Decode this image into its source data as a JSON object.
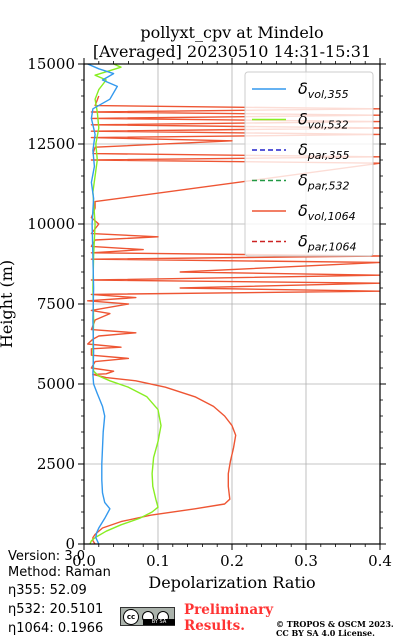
{
  "figure": {
    "title_line1": "pollyxt_cpv at Mindelo",
    "title_line2": "[Averaged] 20230510 14:31-15:31"
  },
  "meta": {
    "version": "Version: 3.0",
    "method": "Method: Raman",
    "eta355": "η355:  52.09",
    "eta532": "η532: 20.5101",
    "eta1064": "η1064: 0.1966"
  },
  "badges": {
    "preliminary_line1": "Preliminary",
    "preliminary_line2": "Results.",
    "copyright_line1": "© TROPOS & OSCM 2023.",
    "copyright_line2": "CC BY SA 4.0 License."
  },
  "chart_data": {
    "type": "line",
    "xlabel": "Depolarization Ratio",
    "ylabel": "Height (m)",
    "xlim": [
      0,
      0.4
    ],
    "ylim": [
      0,
      15000
    ],
    "xticks": [
      0.0,
      0.1,
      0.2,
      0.3,
      0.4
    ],
    "xtick_labels": [
      "0.0",
      "0.1",
      "0.2",
      "0.3",
      "0.4"
    ],
    "yticks": [
      0,
      2500,
      5000,
      7500,
      10000,
      12500,
      15000
    ],
    "ytick_labels": [
      "0",
      "2500",
      "5000",
      "7500",
      "10000",
      "12500",
      "15000"
    ],
    "grid": true,
    "legend_position": "top-right",
    "series": [
      {
        "name": "δvol,355",
        "sub": "vol,355",
        "color": "#3399ee",
        "dash": "solid",
        "points": [
          [
            0.02,
            0
          ],
          [
            0.018,
            100
          ],
          [
            0.016,
            200
          ],
          [
            0.017,
            350
          ],
          [
            0.02,
            500
          ],
          [
            0.028,
            800
          ],
          [
            0.035,
            1100
          ],
          [
            0.028,
            1300
          ],
          [
            0.025,
            1600
          ],
          [
            0.024,
            2000
          ],
          [
            0.024,
            2500
          ],
          [
            0.025,
            3000
          ],
          [
            0.026,
            3500
          ],
          [
            0.028,
            4000
          ],
          [
            0.025,
            4300
          ],
          [
            0.018,
            4700
          ],
          [
            0.013,
            5000
          ],
          [
            0.012,
            5300
          ],
          [
            0.013,
            6000
          ],
          [
            0.012,
            7000
          ],
          [
            0.013,
            8000
          ],
          [
            0.012,
            9000
          ],
          [
            0.011,
            10000
          ],
          [
            0.013,
            10800
          ],
          [
            0.01,
            11300
          ],
          [
            0.014,
            11800
          ],
          [
            0.012,
            12300
          ],
          [
            0.015,
            12800
          ],
          [
            0.01,
            13300
          ],
          [
            0.012,
            13600
          ],
          [
            0.035,
            13900
          ],
          [
            0.045,
            14300
          ],
          [
            0.025,
            14500
          ],
          [
            0.04,
            14700
          ],
          [
            0.02,
            14850
          ],
          [
            0.005,
            15000
          ]
        ]
      },
      {
        "name": "δvol,532",
        "sub": "vol,532",
        "color": "#88ee22",
        "dash": "solid",
        "points": [
          [
            0.008,
            0
          ],
          [
            0.01,
            100
          ],
          [
            0.015,
            200
          ],
          [
            0.03,
            400
          ],
          [
            0.05,
            600
          ],
          [
            0.075,
            800
          ],
          [
            0.092,
            1000
          ],
          [
            0.1,
            1150
          ],
          [
            0.097,
            1400
          ],
          [
            0.093,
            1800
          ],
          [
            0.092,
            2200
          ],
          [
            0.094,
            2700
          ],
          [
            0.1,
            3200
          ],
          [
            0.104,
            3700
          ],
          [
            0.1,
            4200
          ],
          [
            0.085,
            4600
          ],
          [
            0.06,
            4900
          ],
          [
            0.035,
            5100
          ],
          [
            0.02,
            5250
          ],
          [
            0.013,
            5400
          ],
          [
            0.012,
            6000
          ],
          [
            0.013,
            7000
          ],
          [
            0.012,
            8000
          ],
          [
            0.013,
            9000
          ],
          [
            0.015,
            10000
          ],
          [
            0.012,
            11000
          ],
          [
            0.018,
            12000
          ],
          [
            0.016,
            12500
          ],
          [
            0.02,
            13000
          ],
          [
            0.018,
            13500
          ],
          [
            0.015,
            13900
          ],
          [
            0.02,
            14200
          ],
          [
            0.03,
            14500
          ],
          [
            0.015,
            14650
          ],
          [
            0.05,
            14900
          ],
          [
            0.04,
            15000
          ]
        ]
      },
      {
        "name": "δpar,355",
        "sub": "par,355",
        "color": "#2222cc",
        "dash": "dashed",
        "points": []
      },
      {
        "name": "δpar,532",
        "sub": "par,532",
        "color": "#229944",
        "dash": "dashed",
        "points": []
      },
      {
        "name": "δvol,1064",
        "sub": "vol,1064",
        "color": "#ee5533",
        "dash": "solid",
        "points": [
          [
            0.015,
            0
          ],
          [
            0.012,
            100
          ],
          [
            0.012,
            200
          ],
          [
            0.015,
            300
          ],
          [
            0.025,
            500
          ],
          [
            0.05,
            700
          ],
          [
            0.09,
            900
          ],
          [
            0.15,
            1100
          ],
          [
            0.19,
            1250
          ],
          [
            0.197,
            1400
          ],
          [
            0.195,
            1800
          ],
          [
            0.195,
            2200
          ],
          [
            0.198,
            2600
          ],
          [
            0.202,
            3000
          ],
          [
            0.205,
            3400
          ],
          [
            0.2,
            3700
          ],
          [
            0.19,
            4000
          ],
          [
            0.175,
            4300
          ],
          [
            0.15,
            4600
          ],
          [
            0.11,
            4900
          ],
          [
            0.07,
            5100
          ],
          [
            0.03,
            5200
          ],
          [
            0.012,
            5300
          ],
          [
            0.03,
            5320
          ],
          [
            0.04,
            5400
          ],
          [
            0.01,
            5500
          ],
          [
            0.015,
            5700
          ],
          [
            0.06,
            5800
          ],
          [
            0.01,
            5900
          ],
          [
            0.01,
            6100
          ],
          [
            0.05,
            6150
          ],
          [
            0.005,
            6250
          ],
          [
            0.012,
            6400
          ],
          [
            0.02,
            6500
          ],
          [
            0.07,
            6600
          ],
          [
            0.01,
            6700
          ],
          [
            0.015,
            7000
          ],
          [
            0.035,
            7200
          ],
          [
            0.01,
            7300
          ],
          [
            0.06,
            7500
          ],
          [
            0.005,
            7600
          ],
          [
            0.07,
            7700
          ],
          [
            0.01,
            7800
          ],
          [
            0.4,
            7900
          ],
          [
            0.13,
            8000
          ],
          [
            0.4,
            8150
          ],
          [
            0.01,
            8250
          ],
          [
            0.4,
            8400
          ],
          [
            0.13,
            8500
          ],
          [
            0.4,
            8800
          ],
          [
            0.01,
            8900
          ],
          [
            0.4,
            9000
          ],
          [
            0.01,
            9100
          ],
          [
            0.08,
            9200
          ],
          [
            0.01,
            9300
          ],
          [
            0.015,
            9500
          ],
          [
            0.1,
            9600
          ],
          [
            0.01,
            9700
          ],
          [
            0.02,
            10000
          ],
          [
            0.01,
            10200
          ],
          [
            0.015,
            10500
          ],
          [
            0.015,
            10700
          ],
          [
            0.4,
            11900
          ],
          [
            0.01,
            12000
          ],
          [
            0.4,
            12100
          ],
          [
            0.012,
            12200
          ],
          [
            0.015,
            12400
          ],
          [
            0.2,
            12600
          ],
          [
            0.01,
            12700
          ],
          [
            0.4,
            12800
          ],
          [
            0.01,
            12900
          ],
          [
            0.4,
            13000
          ],
          [
            0.01,
            13100
          ],
          [
            0.4,
            13200
          ],
          [
            0.01,
            13300
          ],
          [
            0.4,
            13400
          ],
          [
            0.01,
            13500
          ],
          [
            0.4,
            13600
          ],
          [
            0.015,
            13700
          ],
          [
            0.02,
            14000
          ]
        ]
      },
      {
        "name": "δpar,1064",
        "sub": "par,1064",
        "color": "#cc2222",
        "dash": "dashed",
        "points": []
      }
    ]
  }
}
